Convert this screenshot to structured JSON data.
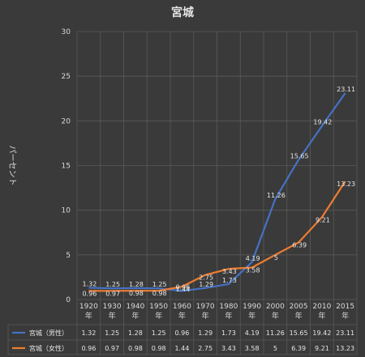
{
  "chart_data": {
    "type": "line",
    "title": "宮城",
    "ylabel": "パーセント",
    "ylim": [
      0,
      30
    ],
    "yticks": [
      0,
      5,
      10,
      15,
      20,
      25,
      30
    ],
    "categories": [
      "1920年",
      "1930年",
      "1940年",
      "1950年",
      "1960年",
      "1970年",
      "1980年",
      "1990年",
      "2000年",
      "2005年",
      "2010年",
      "2015年"
    ],
    "grid": true,
    "legend": "data-table",
    "series": [
      {
        "name": "宮城（男性）",
        "color": "#4472c4",
        "values": [
          1.32,
          1.25,
          1.28,
          1.25,
          0.96,
          1.29,
          1.73,
          4.19,
          11.26,
          15.65,
          19.42,
          23.11
        ],
        "table_labels": [
          "1.32",
          "1.25",
          "1.28",
          "1.25",
          "0.96",
          "1.29",
          "1.73",
          "4.19",
          "11.26",
          "15.65",
          "19.42",
          "23.11"
        ]
      },
      {
        "name": "宮城（女性）",
        "color": "#ed7d31",
        "values": [
          0.96,
          0.97,
          0.98,
          0.98,
          1.44,
          2.75,
          3.43,
          3.58,
          5,
          6.39,
          9.21,
          13.23
        ],
        "table_labels": [
          "0.96",
          "0.97",
          "0.98",
          "0.98",
          "1.44",
          "2.75",
          "3.43",
          "3.58",
          "5",
          "6.39",
          "9.21",
          "13.23"
        ]
      }
    ]
  }
}
